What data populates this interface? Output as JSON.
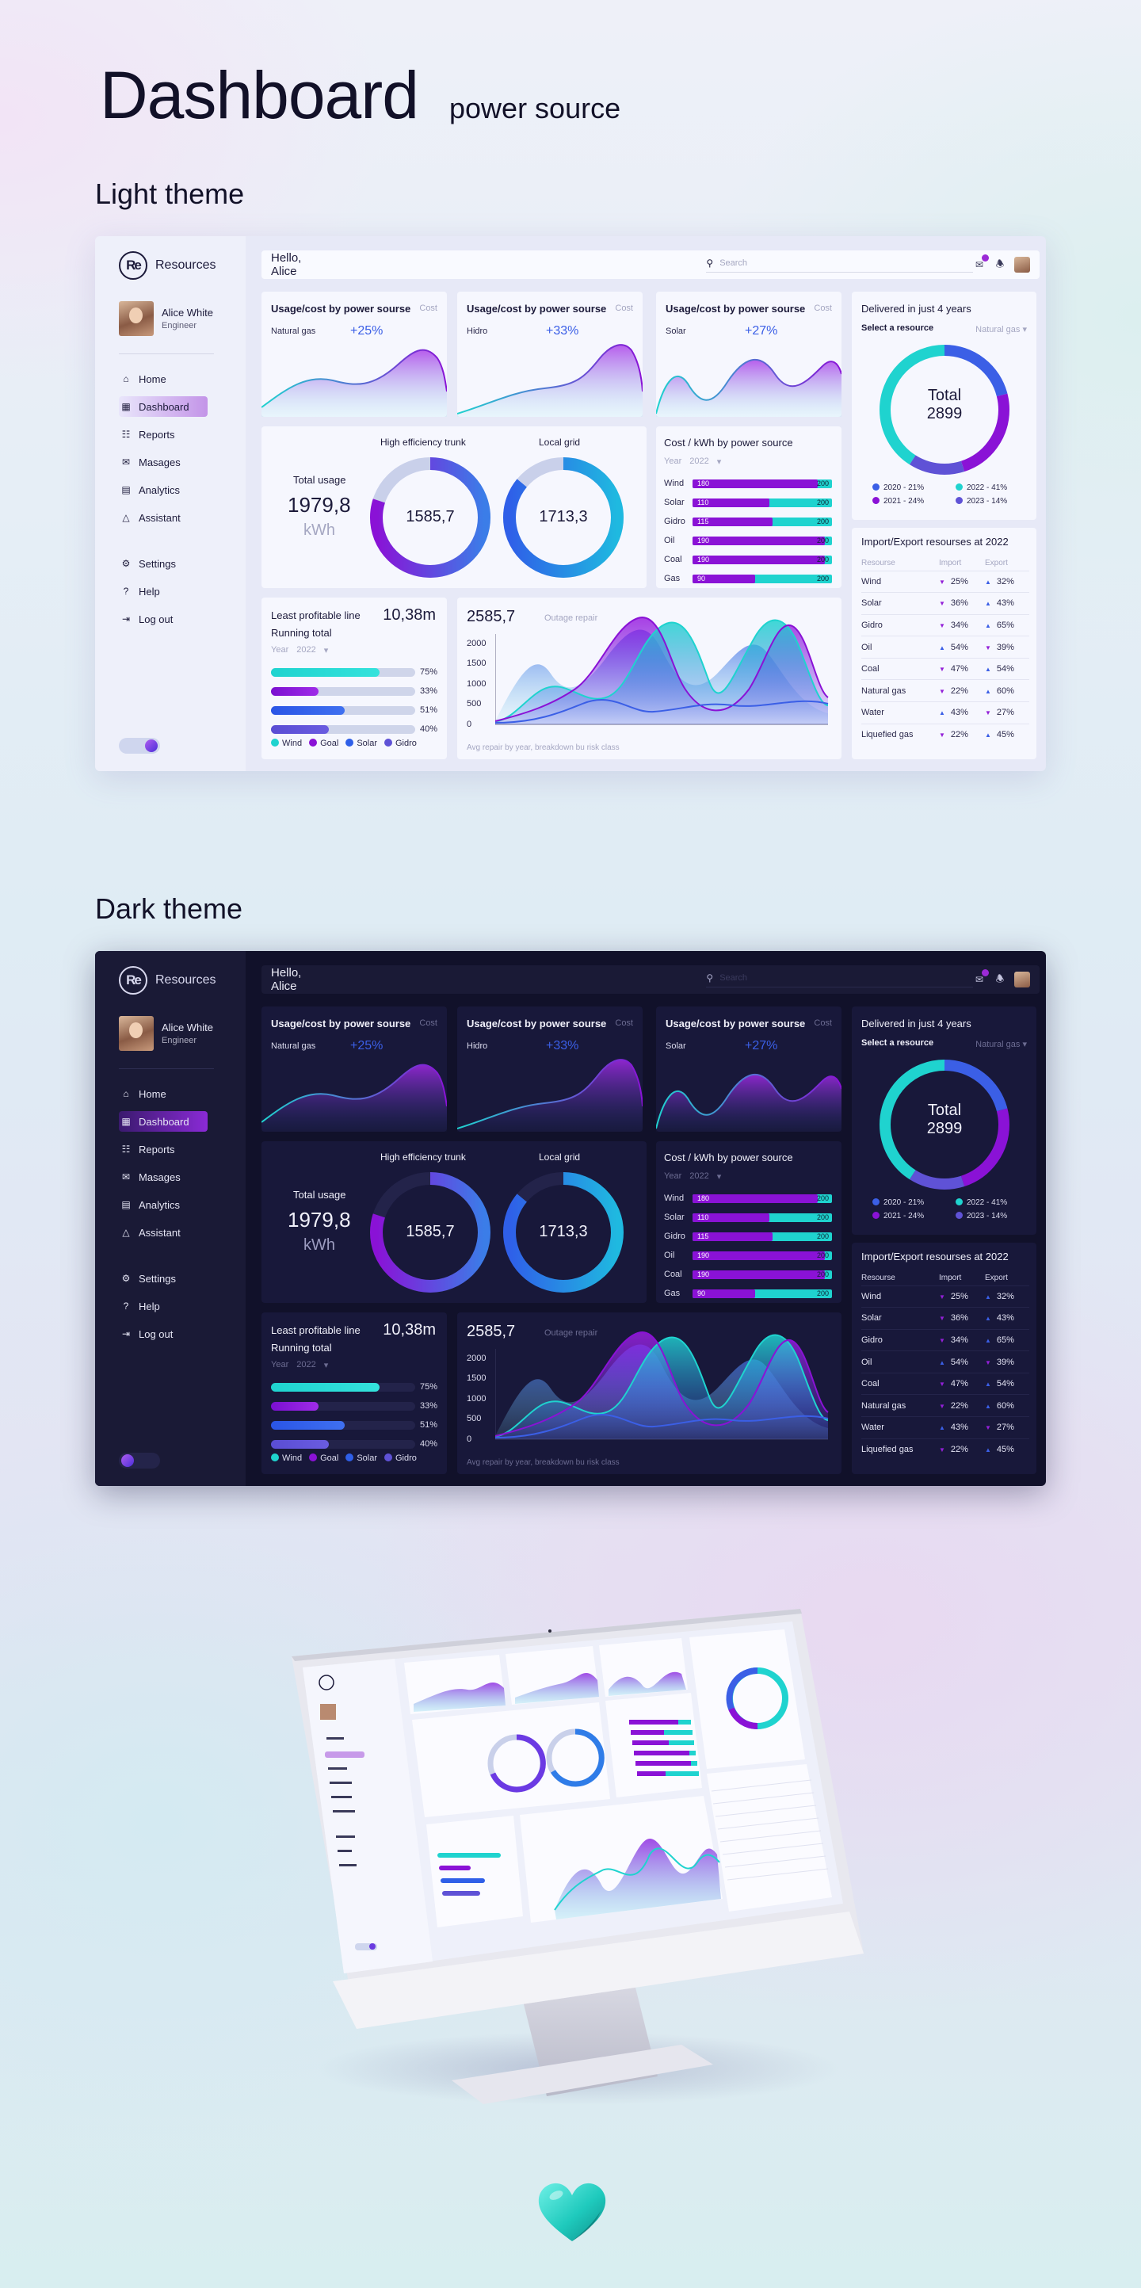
{
  "hero": {
    "title": "Dashboard",
    "subtitle": "power source"
  },
  "sections": {
    "light": "Light theme",
    "dark": "Dark theme"
  },
  "app": {
    "logo_mark": "Re",
    "logo_text": "Resources",
    "profile": {
      "name": "Alice White",
      "role": "Engineer"
    },
    "nav": [
      {
        "label": "Home",
        "icon": "home-icon"
      },
      {
        "label": "Dashboard",
        "icon": "dashboard-icon",
        "active": true
      },
      {
        "label": "Reports",
        "icon": "reports-icon"
      },
      {
        "label": "Masages",
        "icon": "messages-icon"
      },
      {
        "label": "Analytics",
        "icon": "analytics-icon"
      },
      {
        "label": "Assistant",
        "icon": "assistant-icon"
      }
    ],
    "nav2": [
      {
        "label": "Settings",
        "icon": "gear-icon"
      },
      {
        "label": "Help",
        "icon": "help-icon"
      },
      {
        "label": "Log out",
        "icon": "logout-icon"
      }
    ],
    "greeting": "Hello, Alice",
    "search_placeholder": "Search",
    "usage_cards": [
      {
        "title": "Usage/cost by power sourse",
        "cost": "Cost",
        "source": "Natural gas",
        "change": "+25%"
      },
      {
        "title": "Usage/cost by power sourse",
        "cost": "Cost",
        "source": "Hidro",
        "change": "+33%"
      },
      {
        "title": "Usage/cost by power sourse",
        "cost": "Cost",
        "source": "Solar",
        "change": "+27%"
      }
    ],
    "total_usage": {
      "label": "Total usage",
      "value": "1979,8",
      "unit": "kWh",
      "rings": [
        {
          "title": "High efficiency trunk",
          "value": "1585,7",
          "fraction": 0.8
        },
        {
          "title": "Local grid",
          "value": "1713,3",
          "fraction": 0.86
        }
      ]
    },
    "cost_kwh": {
      "title": "Cost / kWh by power source",
      "year_label": "Year",
      "year": "2022",
      "rows": [
        {
          "name": "Wind",
          "value": "180",
          "max": "200",
          "fraction": 0.9
        },
        {
          "name": "Solar",
          "value": "110",
          "max": "200",
          "fraction": 0.55
        },
        {
          "name": "Gidro",
          "value": "115",
          "max": "200",
          "fraction": 0.575
        },
        {
          "name": "Oil",
          "value": "190",
          "max": "200",
          "fraction": 0.95
        },
        {
          "name": "Coal",
          "value": "190",
          "max": "200",
          "fraction": 0.95
        },
        {
          "name": "Gas",
          "value": "90",
          "max": "200",
          "fraction": 0.45
        }
      ]
    },
    "delivered": {
      "title": "Delivered in just 4 years",
      "select_label": "Select a resource",
      "select_value": "Natural gas",
      "total_label": "Total",
      "total_value": "2899",
      "legend": [
        {
          "label": "2020 - 21%",
          "color": "#3b5fe6",
          "share": 21
        },
        {
          "label": "2022 - 41%",
          "color": "#1fd3cf",
          "share": 41
        },
        {
          "label": "2021 - 24%",
          "color": "#8a12d6",
          "share": 24
        },
        {
          "label": "2023 - 14%",
          "color": "#5f52d6",
          "share": 14
        }
      ]
    },
    "import_export": {
      "title": "Import/Export  resourses at 2022",
      "headers": [
        "Resourse",
        "Import",
        "Export"
      ],
      "rows": [
        {
          "name": "Wind",
          "imp": "25%",
          "imp_dir": "down",
          "exp": "32%",
          "exp_dir": "up"
        },
        {
          "name": "Solar",
          "imp": "36%",
          "imp_dir": "down",
          "exp": "43%",
          "exp_dir": "up"
        },
        {
          "name": "Gidro",
          "imp": "34%",
          "imp_dir": "down",
          "exp": "65%",
          "exp_dir": "up"
        },
        {
          "name": "Oil",
          "imp": "54%",
          "imp_dir": "up",
          "exp": "39%",
          "exp_dir": "down"
        },
        {
          "name": "Coal",
          "imp": "47%",
          "imp_dir": "down",
          "exp": "54%",
          "exp_dir": "up"
        },
        {
          "name": "Natural gas",
          "imp": "22%",
          "imp_dir": "down",
          "exp": "60%",
          "exp_dir": "up"
        },
        {
          "name": "Water",
          "imp": "43%",
          "imp_dir": "up",
          "exp": "27%",
          "exp_dir": "down"
        },
        {
          "name": "Liquefied gas",
          "imp": "22%",
          "imp_dir": "down",
          "exp": "45%",
          "exp_dir": "up"
        }
      ]
    },
    "profit": {
      "title": "Least profitable line",
      "value": "10,38m",
      "subtitle": "Running total",
      "year_label": "Year",
      "year": "2022",
      "bars": [
        {
          "value": "75%",
          "fraction": 0.75,
          "color": "#1fd3cf"
        },
        {
          "value": "33%",
          "fraction": 0.33,
          "color": "#8a12d6"
        },
        {
          "value": "51%",
          "fraction": 0.51,
          "color": "#2f5fe8"
        },
        {
          "value": "40%",
          "fraction": 0.4,
          "color": "#5f52d6"
        }
      ],
      "legend": [
        {
          "label": "Wind",
          "color": "#1fd3cf"
        },
        {
          "label": "Goal",
          "color": "#8a12d6"
        },
        {
          "label": "Solar",
          "color": "#2f5fe8"
        },
        {
          "label": "Gidro",
          "color": "#5f52d6"
        }
      ]
    },
    "outage": {
      "value": "2585,7",
      "label": "Outage repair",
      "footnote": "Avg repair by year, breakdown bu risk class",
      "y_ticks": [
        "2000",
        "1500",
        "1000",
        "500",
        "0"
      ]
    }
  },
  "colors": {
    "accent_purple": "#8a12d6",
    "accent_teal": "#1fd3cf",
    "accent_blue": "#3b5fe6",
    "dark_bg": "#11112a",
    "light_bg": "#e7e9f7"
  }
}
